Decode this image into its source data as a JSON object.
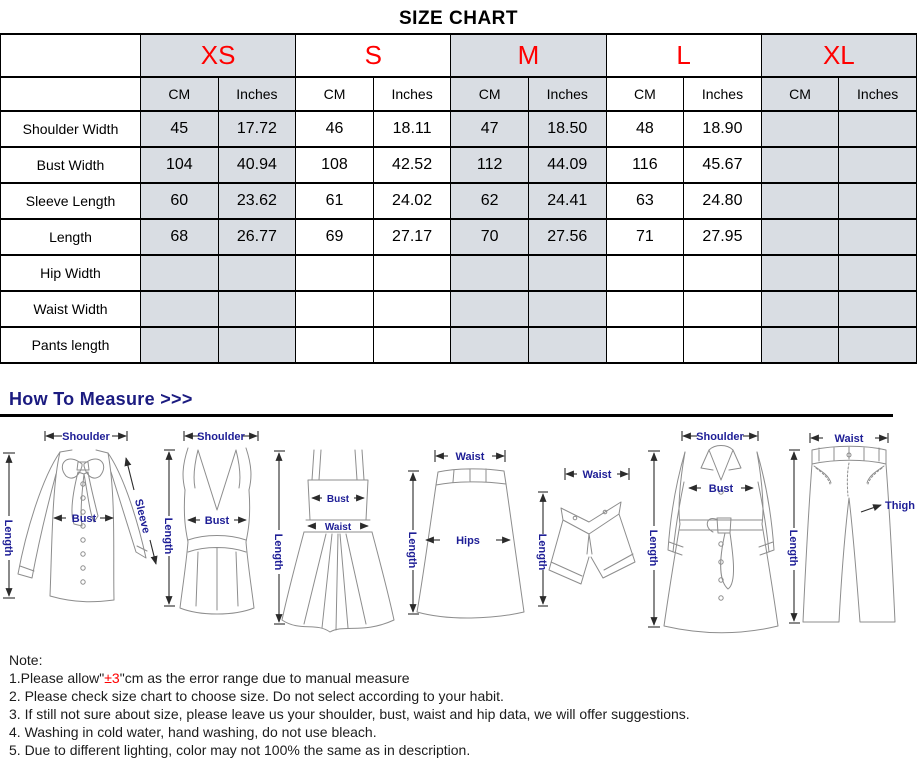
{
  "title": "SIZE CHART",
  "table": {
    "sizes": [
      "XS",
      "S",
      "M",
      "L",
      "XL"
    ],
    "units": [
      "CM",
      "Inches"
    ],
    "rows": [
      {
        "label": "Shoulder Width",
        "values": [
          "45",
          "17.72",
          "46",
          "18.11",
          "47",
          "18.50",
          "48",
          "18.90",
          "",
          ""
        ]
      },
      {
        "label": "Bust Width",
        "values": [
          "104",
          "40.94",
          "108",
          "42.52",
          "112",
          "44.09",
          "116",
          "45.67",
          "",
          ""
        ]
      },
      {
        "label": "Sleeve Length",
        "values": [
          "60",
          "23.62",
          "61",
          "24.02",
          "62",
          "24.41",
          "63",
          "24.80",
          "",
          ""
        ]
      },
      {
        "label": "Length",
        "values": [
          "68",
          "26.77",
          "69",
          "27.17",
          "70",
          "27.56",
          "71",
          "27.95",
          "",
          ""
        ]
      },
      {
        "label": "Hip Width",
        "values": [
          "",
          "",
          "",
          "",
          "",
          "",
          "",
          "",
          "",
          ""
        ]
      },
      {
        "label": "Waist Width",
        "values": [
          "",
          "",
          "",
          "",
          "",
          "",
          "",
          "",
          "",
          ""
        ]
      },
      {
        "label": "Pants length",
        "values": [
          "",
          "",
          "",
          "",
          "",
          "",
          "",
          "",
          "",
          ""
        ]
      }
    ]
  },
  "measure": {
    "heading": "How To Measure >>>",
    "labels": {
      "shoulder": "Shoulder",
      "length": "Length",
      "bust": "Bust",
      "sleeve": "Sleeve",
      "waist": "Waist",
      "hips": "Hips",
      "thigh": "Thigh"
    }
  },
  "notes": {
    "heading": "Note:",
    "line1": {
      "pre": "1.Please allow\"",
      "highlight": "±3",
      "post": "\"cm as the error range due to manual measure"
    },
    "items": [
      "2. Please check size chart to choose size. Do not select according to your habit.",
      "3. If still not sure about size, please leave us your shoulder, bust, waist and hip data, we will offer suggestions.",
      "4. Washing in cold water, hand washing, do not use bleach.",
      "5. Due to different lighting, color may not 100% the same as in description."
    ]
  },
  "colors": {
    "size_letter_red": "#ff0000",
    "shaded_column": "#d9dde3",
    "measure_navy": "#1e1e96",
    "note_highlight_red": "#ff0000",
    "table_border": "#000000"
  }
}
